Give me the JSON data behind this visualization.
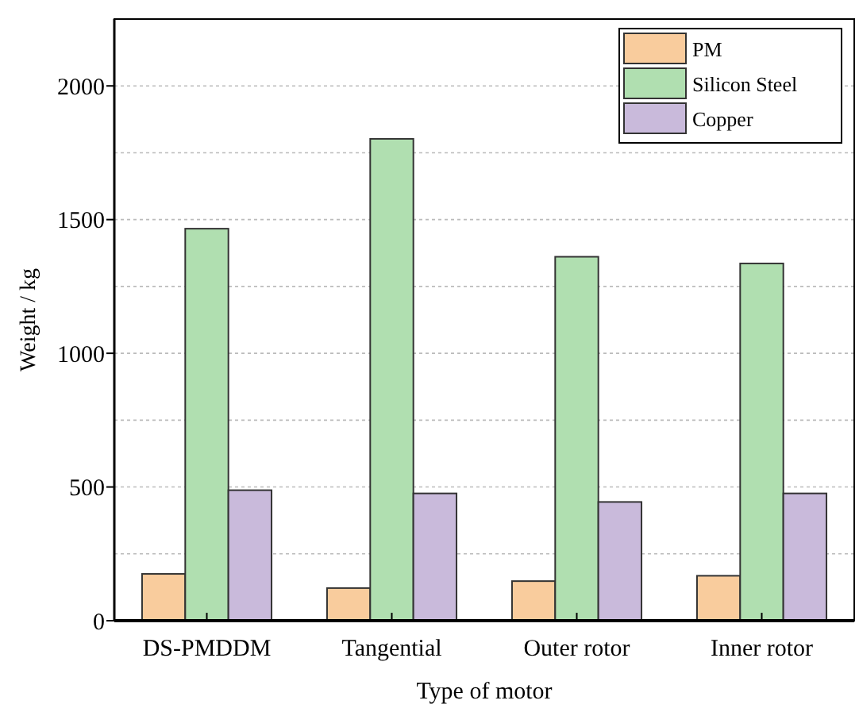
{
  "chart_data": {
    "type": "bar",
    "xlabel": "Type of motor",
    "ylabel": "Weight / kg",
    "categories": [
      "DS-PMDDM",
      "Tangential",
      "Outer rotor",
      "Inner rotor"
    ],
    "series": [
      {
        "name": "PM",
        "color": "#f9cc9d",
        "values": [
          175,
          122,
          148,
          168
        ]
      },
      {
        "name": "Silicon Steel",
        "color": "#b0dfb0",
        "values": [
          1466,
          1802,
          1361,
          1336
        ]
      },
      {
        "name": "Copper",
        "color": "#c9badb",
        "values": [
          488,
          476,
          444,
          476
        ]
      }
    ],
    "ylim": [
      0,
      2250
    ],
    "yticks": [
      0,
      {
        "value": 250,
        "label": null
      },
      500,
      {
        "value": 750,
        "label": null
      },
      1000,
      {
        "value": 1250,
        "label": null
      },
      1500,
      {
        "value": 1750,
        "label": null
      },
      2000
    ],
    "grid": "y",
    "legend": "top right"
  }
}
